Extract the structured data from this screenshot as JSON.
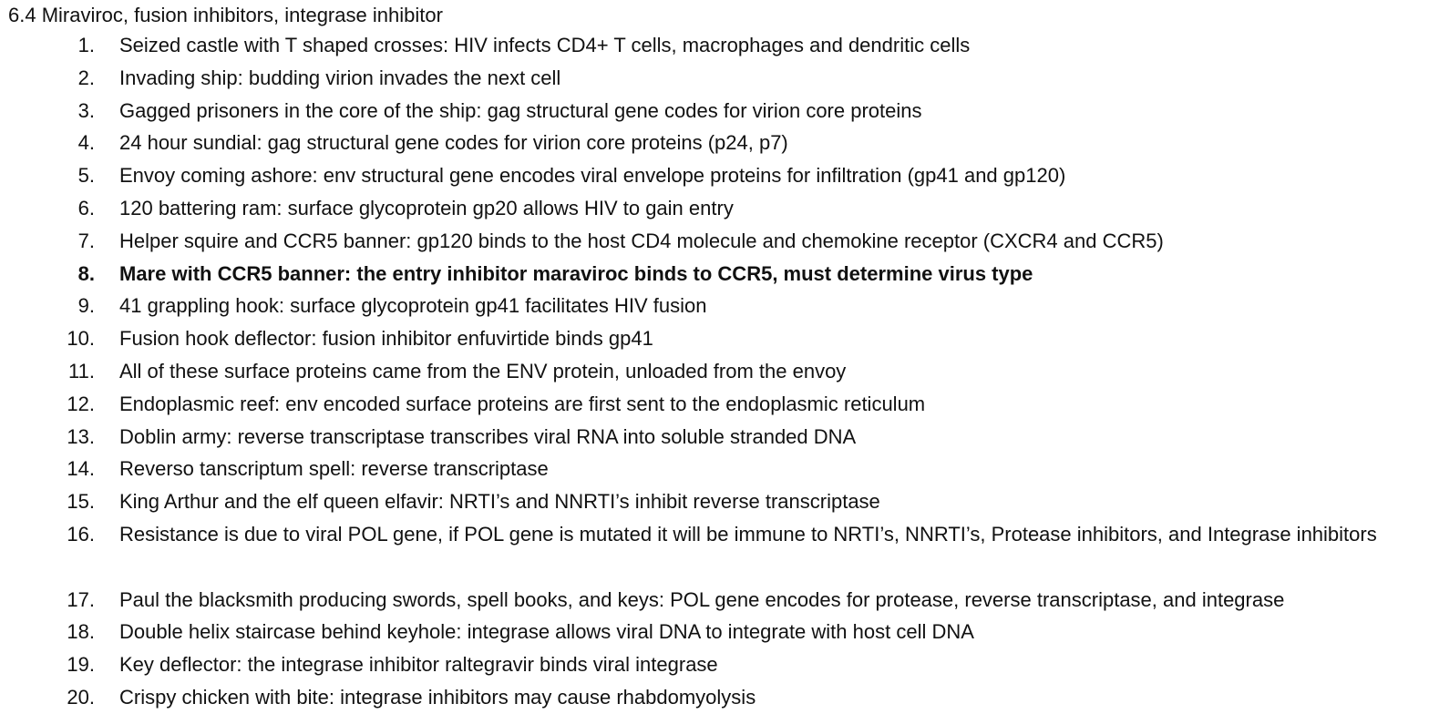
{
  "document": {
    "title": "6.4 Miraviroc, fusion inhibitors, integrase inhibitor",
    "items": [
      {
        "number": "1.",
        "text": "Seized castle with T shaped crosses: HIV infects CD4+ T cells, macrophages and dendritic cells"
      },
      {
        "number": "2.",
        "text": "Invading ship: budding virion invades the next cell"
      },
      {
        "number": "3.",
        "text": "Gagged prisoners in the core of the ship: gag structural gene codes for virion core proteins"
      },
      {
        "number": "4.",
        "text": "24 hour sundial: gag structural gene codes for virion core proteins (p24, p7)"
      },
      {
        "number": "5.",
        "text": "Envoy coming ashore: env structural gene encodes viral envelope proteins for infiltration (gp41 and gp120)"
      },
      {
        "number": "6.",
        "text": "120 battering ram: surface glycoprotein gp20 allows HIV to gain entry"
      },
      {
        "number": "7.",
        "text": "Helper squire and CCR5 banner: gp120 binds to the host CD4 molecule and chemokine receptor (CXCR4 and CCR5)"
      },
      {
        "number": "8.",
        "text": "Mare with CCR5 banner: the entry inhibitor maraviroc binds to CCR5, must determine virus type",
        "bold": true
      },
      {
        "number": "9.",
        "text": "41 grappling hook: surface glycoprotein gp41 facilitates HIV fusion"
      },
      {
        "number": "10.",
        "text": "Fusion hook deflector: fusion inhibitor enfuvirtide binds gp41"
      },
      {
        "number": "11.",
        "text": "All of these surface proteins came from the ENV protein, unloaded from the envoy"
      },
      {
        "number": "12.",
        "text": "Endoplasmic reef: env encoded surface proteins are first sent to the endoplasmic reticulum"
      },
      {
        "number": "13.",
        "text": "Doblin army: reverse transcriptase transcribes viral RNA into soluble stranded DNA"
      },
      {
        "number": "14.",
        "text": "Reverso tanscriptum spell: reverse transcriptase"
      },
      {
        "number": "15.",
        "text": "King Arthur and the elf queen elfavir: NRTI’s and NNRTI’s inhibit reverse transcriptase"
      },
      {
        "number": "16.",
        "text": "Resistance is due to viral POL gene, if POL gene is mutated it will be immune to NRTI’s, NNRTI’s, Protease inhibitors, and Integrase inhibitors"
      },
      {
        "number": "17.",
        "text": "Paul the blacksmith producing swords, spell books, and keys: POL gene encodes for protease, reverse transcriptase, and integrase"
      },
      {
        "number": "18.",
        "text": "Double helix staircase behind keyhole: integrase allows viral DNA to integrate with host cell DNA"
      },
      {
        "number": "19.",
        "text": "Key deflector: the integrase inhibitor raltegravir binds viral integrase"
      },
      {
        "number": "20.",
        "text": "Crispy chicken with bite: integrase inhibitors may cause rhabdomyolysis"
      }
    ]
  }
}
